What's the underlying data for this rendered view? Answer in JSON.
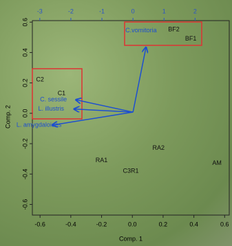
{
  "chart_data": {
    "type": "biplot",
    "xlabel": "Comp. 1",
    "ylabel": "Comp. 2",
    "xlim": [
      -0.65,
      0.63
    ],
    "ylim": [
      -0.67,
      0.61
    ],
    "xticks": [
      -0.6,
      -0.4,
      -0.2,
      {
        "value": 0,
        "label": "0.0"
      },
      0.2,
      0.4,
      0.6
    ],
    "yticks": [
      -0.6,
      -0.4,
      -0.2,
      {
        "value": 0,
        "label": "0.0"
      },
      0.2,
      0.4,
      0.6
    ],
    "x2lim": [
      -3.24,
      3.1
    ],
    "y2lim": [
      -3.33,
      2.96
    ],
    "x2ticks": [
      -3,
      -2,
      -1,
      0,
      1,
      2
    ],
    "axis_color": "#2b55c8",
    "points": {
      "labels": [
        "C2",
        "C1",
        "RA2",
        "RA1",
        "C3R1",
        "AM",
        "BF2",
        "BF1"
      ],
      "x": [
        -0.6,
        -0.46,
        0.17,
        -0.2,
        -0.01,
        0.55,
        0.27,
        0.38
      ],
      "y": [
        0.22,
        0.13,
        -0.23,
        -0.31,
        -0.38,
        -0.33,
        0.55,
        0.49
      ],
      "color": "#111111"
    },
    "loadings": {
      "labels": [
        "C.vomitoria",
        "C. sessile",
        "L. illustris",
        "L. amygdaloides"
      ],
      "x": [
        0.42,
        -1.84,
        -1.9,
        -2.6
      ],
      "y": [
        2.1,
        0.4,
        0.1,
        -0.42
      ],
      "color": "#1d4fd0"
    }
  }
}
